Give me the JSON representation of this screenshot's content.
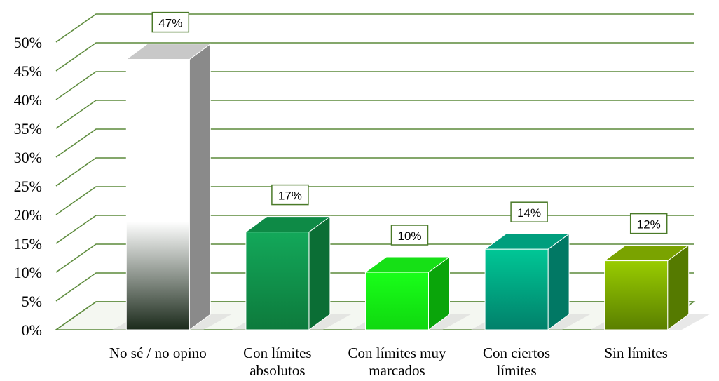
{
  "chart_data": {
    "type": "bar",
    "categories": [
      [
        "No sé / no opino"
      ],
      [
        "Con límites",
        "absolutos"
      ],
      [
        "Con límites muy",
        "marcados"
      ],
      [
        "Con ciertos",
        "límites"
      ],
      [
        "Sin límites"
      ]
    ],
    "values": [
      47,
      17,
      10,
      14,
      12
    ],
    "data_labels": [
      "47%",
      "17%",
      "10%",
      "14%",
      "12%"
    ],
    "y_ticks": [
      "0%",
      "5%",
      "10%",
      "15%",
      "20%",
      "25%",
      "30%",
      "35%",
      "40%",
      "45%",
      "50%"
    ],
    "ylim": [
      0,
      50
    ],
    "grid": true,
    "style": "3d",
    "colors": {
      "gridline": "#5b8a3a",
      "bars": [
        {
          "front_top": "#ffffff",
          "front_bottom": "#1b2a1b",
          "side": "#8a8a8a",
          "top": "#c8c8c8"
        },
        {
          "front_top": "#13a85a",
          "front_bottom": "#0d7a3c",
          "side": "#0b6e35",
          "top": "#0e8a46"
        },
        {
          "front_top": "#19ff19",
          "front_bottom": "#0fd80f",
          "side": "#0aa50a",
          "top": "#16e016"
        },
        {
          "front_top": "#00c796",
          "front_bottom": "#01806a",
          "side": "#017864",
          "top": "#009e7d"
        },
        {
          "front_top": "#99cc00",
          "front_bottom": "#5a7f00",
          "side": "#557a00",
          "top": "#7aa300"
        }
      ],
      "label_border": "#4a7a28"
    }
  }
}
